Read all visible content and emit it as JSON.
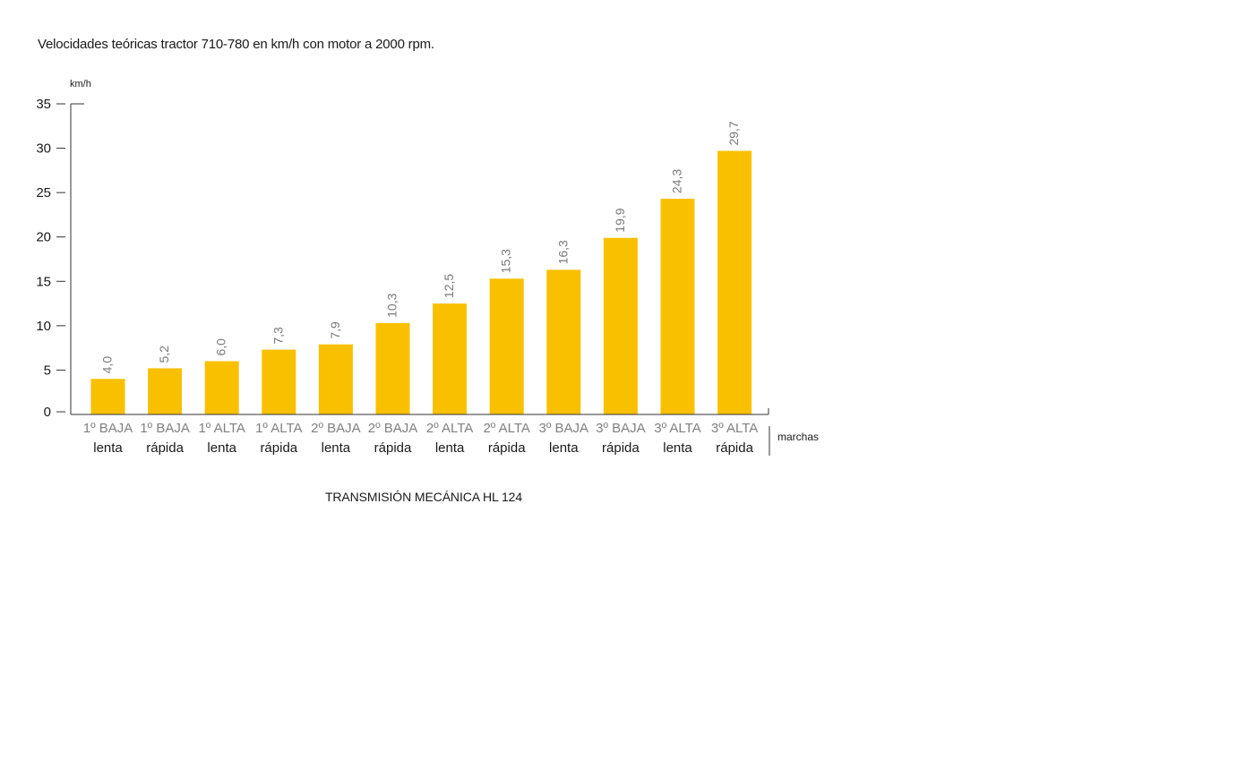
{
  "title": "Velocidades teóricas tractor 710-780 en km/h con motor a 2000 rpm.",
  "caption": "TRANSMISIÓN MECÁNICA HL 124",
  "colors": {
    "bar": "#F9C000",
    "value_label": "#7a7a7a",
    "category_gear": "#808080",
    "axis": "#333333"
  },
  "chart_data": {
    "type": "bar",
    "ylabel": "km/h",
    "xlabel": "marchas",
    "ylim": [
      0,
      35
    ],
    "yticks": [
      "0",
      "5",
      "10",
      "15",
      "20",
      "25",
      "30",
      "35"
    ],
    "grid": false,
    "legend": "none",
    "categories": [
      {
        "gear": "1º BAJA",
        "mode": "lenta"
      },
      {
        "gear": "1º BAJA",
        "mode": "rápida"
      },
      {
        "gear": "1º ALTA",
        "mode": "lenta"
      },
      {
        "gear": "1º ALTA",
        "mode": "rápida"
      },
      {
        "gear": "2º BAJA",
        "mode": "lenta"
      },
      {
        "gear": "2º BAJA",
        "mode": "rápida"
      },
      {
        "gear": "2º ALTA",
        "mode": "lenta"
      },
      {
        "gear": "2º ALTA",
        "mode": "rápida"
      },
      {
        "gear": "3º BAJA",
        "mode": "lenta"
      },
      {
        "gear": "3º BAJA",
        "mode": "rápida"
      },
      {
        "gear": "3º ALTA",
        "mode": "lenta"
      },
      {
        "gear": "3º ALTA",
        "mode": "rápida"
      }
    ],
    "values": [
      4.0,
      5.2,
      6.0,
      7.3,
      7.9,
      10.3,
      12.5,
      15.3,
      16.3,
      19.9,
      24.3,
      29.7
    ],
    "value_labels": [
      "4,0",
      "5,2",
      "6,0",
      "7,3",
      "7,9",
      "10,3",
      "12,5",
      "15,3",
      "16,3",
      "19,9",
      "24,3",
      "29,7"
    ]
  }
}
